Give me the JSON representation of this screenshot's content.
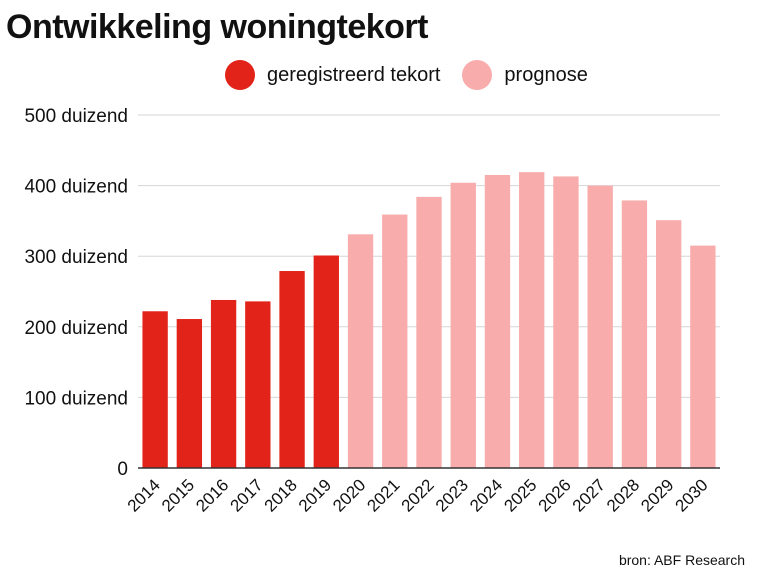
{
  "chart_data": {
    "type": "bar",
    "title": "Ontwikkeling woningtekort",
    "categories": [
      "2014",
      "2015",
      "2016",
      "2017",
      "2018",
      "2019",
      "2020",
      "2021",
      "2022",
      "2023",
      "2024",
      "2025",
      "2026",
      "2027",
      "2028",
      "2029",
      "2030"
    ],
    "values": [
      222,
      211,
      238,
      236,
      279,
      301,
      331,
      359,
      384,
      404,
      415,
      419,
      413,
      400,
      379,
      351,
      315
    ],
    "series_type": [
      "registered",
      "registered",
      "registered",
      "registered",
      "registered",
      "registered",
      "forecast",
      "forecast",
      "forecast",
      "forecast",
      "forecast",
      "forecast",
      "forecast",
      "forecast",
      "forecast",
      "forecast",
      "forecast"
    ],
    "unit": "duizend",
    "ylim": [
      0,
      500
    ],
    "ytick_values": [
      0,
      100,
      200,
      300,
      400,
      500
    ],
    "ytick_labels": [
      "0",
      "100 duizend",
      "200 duizend",
      "300 duizend",
      "400 duizend",
      "500 duizend"
    ],
    "grid": true,
    "legend": [
      {
        "label": "geregistreerd tekort",
        "color": "#e2231a"
      },
      {
        "label": "prognose",
        "color": "#f8acac"
      }
    ],
    "legend_position": "top-center",
    "source": "bron: ABF Research"
  },
  "colors": {
    "registered": "#e2231a",
    "forecast": "#f8acac",
    "grid": "#d6d6d6",
    "axis": "#333333"
  }
}
